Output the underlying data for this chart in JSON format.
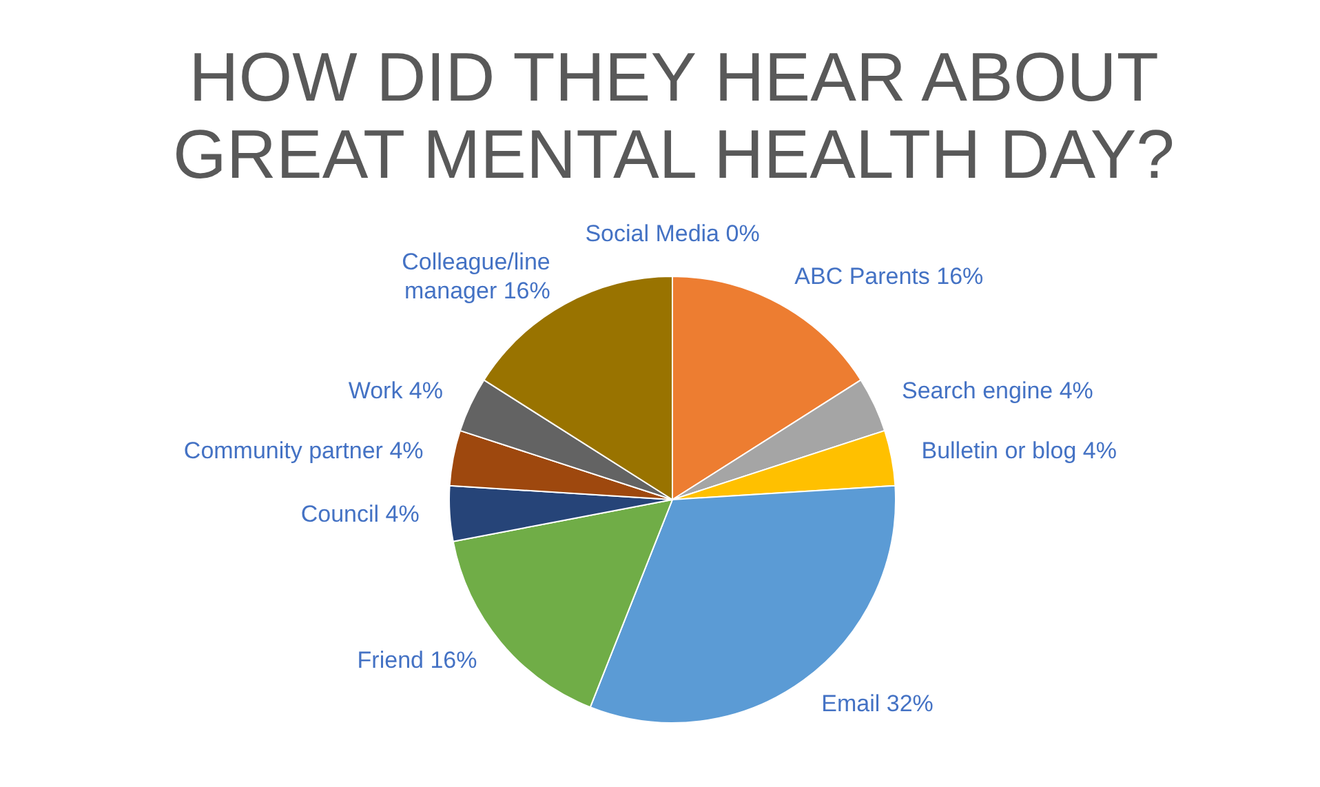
{
  "chart_data": {
    "type": "pie",
    "title": "HOW DID THEY HEAR ABOUT GREAT MENTAL HEALTH DAY?",
    "categories": [
      "Social Media",
      "ABC Parents",
      "Search engine",
      "Bulletin or blog",
      "Email",
      "Friend",
      "Council",
      "Community partner",
      "Work",
      "Colleague/line manager"
    ],
    "values": [
      0,
      16,
      4,
      4,
      32,
      16,
      4,
      4,
      4,
      16
    ],
    "value_labels": [
      "0%",
      "16%",
      "4%",
      "4%",
      "32%",
      "16%",
      "4%",
      "4%",
      "4%",
      "16%"
    ],
    "colors": [
      "#4472c4",
      "#ed7d31",
      "#a5a5a5",
      "#ffc000",
      "#5b9bd5",
      "#70ad47",
      "#264478",
      "#9e480e",
      "#636363",
      "#997300"
    ],
    "legend": false
  }
}
